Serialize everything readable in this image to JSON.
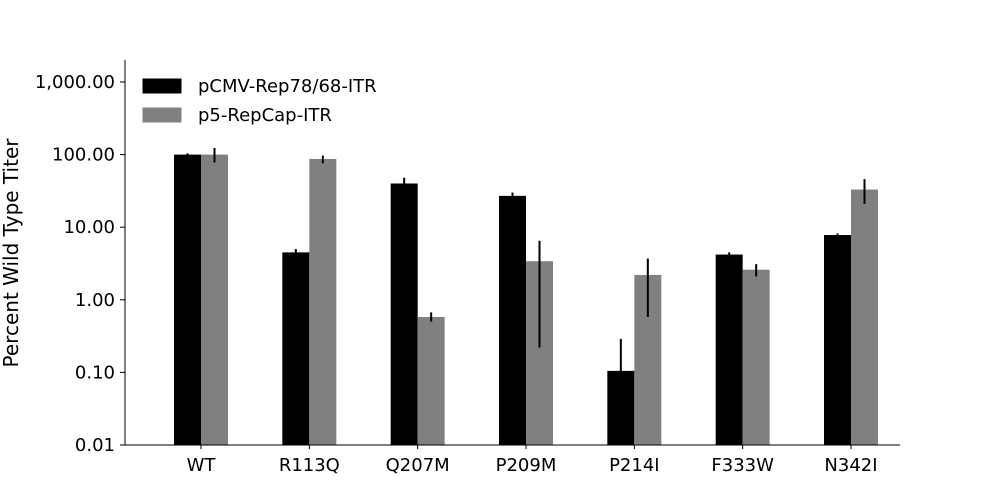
{
  "chart_data": {
    "type": "bar",
    "title": "",
    "xlabel": "",
    "ylabel": "Percent Wild Type Titer",
    "yscale": "log",
    "ylim": [
      0.01,
      2000
    ],
    "yticks": [
      0.01,
      0.1,
      1,
      10,
      100,
      1000
    ],
    "ytick_labels": [
      "0.01",
      "0.10",
      "1.00",
      "10.00",
      "100.00",
      "1,000.00"
    ],
    "categories": [
      "WT",
      "R113Q",
      "Q207M",
      "P209M",
      "P214I",
      "F333W",
      "N342I"
    ],
    "series": [
      {
        "name": "pCMV-Rep78/68-ITR",
        "color": "#000000",
        "values": [
          100,
          4.5,
          40,
          27,
          0.105,
          4.2,
          7.8
        ],
        "error_low": [
          96,
          4.1,
          33,
          24,
          0.01,
          3.9,
          7.4
        ],
        "error_high": [
          104,
          5.0,
          48,
          30,
          0.29,
          4.5,
          8.2
        ]
      },
      {
        "name": "p5-RepCap-ITR",
        "color": "#808080",
        "values": [
          100,
          87,
          0.58,
          3.4,
          2.2,
          2.6,
          33
        ],
        "error_low": [
          78,
          76,
          0.5,
          0.22,
          0.58,
          2.1,
          21
        ],
        "error_high": [
          123,
          97,
          0.67,
          6.5,
          3.7,
          3.1,
          46
        ]
      }
    ],
    "legend_position": "upper-left",
    "grid": false
  }
}
